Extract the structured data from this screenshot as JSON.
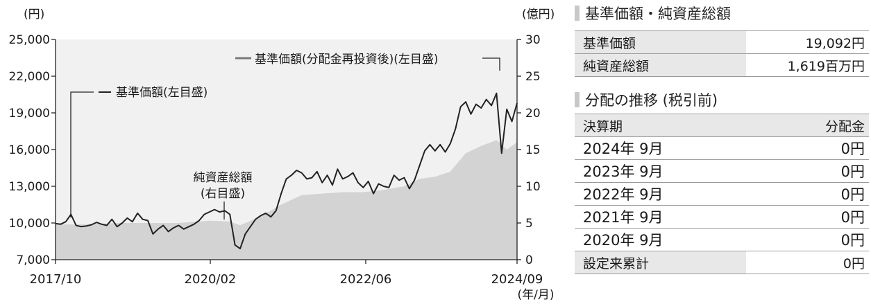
{
  "chart": {
    "left_unit": "(円)",
    "right_unit": "(億円)",
    "x_unit": "(年/月)",
    "ann_reinvest": "基準価額(分配金再投資後)(左目盛)",
    "ann_nav": "基準価額(左目盛)",
    "ann_assets_1": "純資産総額",
    "ann_assets_2": "(右目盛)"
  },
  "chart_data": {
    "type": "line",
    "x_ticks": [
      "2017/10",
      "2020/02",
      "2022/06",
      "2024/09"
    ],
    "left_ticks": [
      "7,000",
      "10,000",
      "13,000",
      "16,000",
      "19,000",
      "22,000",
      "25,000"
    ],
    "right_ticks": [
      "0",
      "5",
      "10",
      "15",
      "20",
      "25",
      "30"
    ],
    "ylim_left": [
      7000,
      25000
    ],
    "ylim_right": [
      0,
      30
    ],
    "grid": false,
    "series": [
      {
        "name": "基準価額(分配金再投資後)(左目盛)",
        "axis": "left",
        "points": [
          [
            "2017-10",
            9950
          ],
          [
            "2017-11",
            9900
          ],
          [
            "2017-12",
            10100
          ],
          [
            "2018-01",
            10700
          ],
          [
            "2018-02",
            9800
          ],
          [
            "2018-03",
            9700
          ],
          [
            "2018-04",
            9750
          ],
          [
            "2018-05",
            9850
          ],
          [
            "2018-06",
            10050
          ],
          [
            "2018-07",
            9900
          ],
          [
            "2018-08",
            9800
          ],
          [
            "2018-09",
            10300
          ],
          [
            "2018-10",
            9700
          ],
          [
            "2018-11",
            10000
          ],
          [
            "2018-12",
            10400
          ],
          [
            "2019-01",
            10100
          ],
          [
            "2019-02",
            10800
          ],
          [
            "2019-03",
            10300
          ],
          [
            "2019-04",
            10200
          ],
          [
            "2019-05",
            9100
          ],
          [
            "2019-06",
            9500
          ],
          [
            "2019-07",
            9800
          ],
          [
            "2019-08",
            9300
          ],
          [
            "2019-09",
            9600
          ],
          [
            "2019-10",
            9800
          ],
          [
            "2019-11",
            9500
          ],
          [
            "2019-12",
            9700
          ],
          [
            "2020-01",
            9900
          ],
          [
            "2020-02",
            10200
          ],
          [
            "2020-03",
            10700
          ],
          [
            "2020-04",
            10900
          ],
          [
            "2020-05",
            11100
          ],
          [
            "2020-06",
            10900
          ],
          [
            "2020-07",
            11000
          ],
          [
            "2020-08",
            10700
          ],
          [
            "2020-09",
            8200
          ],
          [
            "2020-10",
            7900
          ],
          [
            "2020-11",
            9100
          ],
          [
            "2020-12",
            9700
          ],
          [
            "2021-01",
            10300
          ],
          [
            "2021-02",
            10600
          ],
          [
            "2021-03",
            10800
          ],
          [
            "2021-04",
            10500
          ],
          [
            "2021-05",
            11000
          ],
          [
            "2021-06",
            12400
          ],
          [
            "2021-07",
            13600
          ],
          [
            "2021-08",
            13900
          ],
          [
            "2021-09",
            14300
          ],
          [
            "2021-10",
            14100
          ],
          [
            "2021-11",
            13600
          ],
          [
            "2021-12",
            13700
          ],
          [
            "2022-01",
            14200
          ],
          [
            "2022-02",
            13300
          ],
          [
            "2022-03",
            13900
          ],
          [
            "2022-04",
            13100
          ],
          [
            "2022-05",
            14400
          ],
          [
            "2022-06",
            13600
          ],
          [
            "2022-07",
            13800
          ],
          [
            "2022-08",
            14100
          ],
          [
            "2022-09",
            13300
          ],
          [
            "2022-10",
            12900
          ],
          [
            "2022-11",
            13400
          ],
          [
            "2022-12",
            12400
          ],
          [
            "2023-01",
            13200
          ],
          [
            "2023-02",
            13000
          ],
          [
            "2023-03",
            12900
          ],
          [
            "2023-04",
            13900
          ],
          [
            "2023-05",
            13500
          ],
          [
            "2023-06",
            13700
          ],
          [
            "2023-07",
            12800
          ],
          [
            "2023-08",
            13500
          ],
          [
            "2023-09",
            14700
          ],
          [
            "2023-10",
            15900
          ],
          [
            "2023-11",
            16400
          ],
          [
            "2023-12",
            15900
          ],
          [
            "2024-01",
            16400
          ],
          [
            "2024-02",
            15800
          ],
          [
            "2024-03",
            16500
          ],
          [
            "2024-04",
            17700
          ],
          [
            "2024-05",
            19500
          ],
          [
            "2024-06",
            19900
          ],
          [
            "2024-07",
            18900
          ],
          [
            "2024-08",
            19700
          ],
          [
            "2024-09",
            19400
          ],
          [
            "2024-10",
            20100
          ],
          [
            "2024-11",
            19600
          ],
          [
            "2024-12",
            20600
          ],
          [
            "2025-01",
            15700
          ],
          [
            "2025-02",
            19300
          ],
          [
            "2025-03",
            18300
          ],
          [
            "2025-04",
            19800
          ]
        ]
      },
      {
        "name": "純資産総額(右目盛)",
        "axis": "right",
        "points": [
          [
            "2017-10",
            4.8
          ],
          [
            "2018-04",
            4.8
          ],
          [
            "2018-10",
            5.0
          ],
          [
            "2019-04",
            5.0
          ],
          [
            "2019-10",
            5.0
          ],
          [
            "2020-04",
            5.3
          ],
          [
            "2020-08",
            5.2
          ],
          [
            "2020-10",
            4.7
          ],
          [
            "2021-02",
            5.9
          ],
          [
            "2021-06",
            7.5
          ],
          [
            "2021-10",
            8.8
          ],
          [
            "2022-02",
            9.0
          ],
          [
            "2022-06",
            9.2
          ],
          [
            "2022-10",
            9.2
          ],
          [
            "2023-02",
            9.5
          ],
          [
            "2023-06",
            10.0
          ],
          [
            "2023-09",
            11.0
          ],
          [
            "2023-12",
            11.3
          ],
          [
            "2024-03",
            12.0
          ],
          [
            "2024-06",
            14.5
          ],
          [
            "2024-09",
            15.5
          ],
          [
            "2024-12",
            16.3
          ],
          [
            "2025-02",
            15.0
          ],
          [
            "2025-04",
            16.0
          ]
        ]
      }
    ]
  },
  "nav_section": {
    "title": "基準価額・純資産総額",
    "rows": [
      {
        "label": "基準価額",
        "value": "19,092円"
      },
      {
        "label": "純資産総額",
        "value": "1,619百万円"
      }
    ]
  },
  "dist_section": {
    "title": "分配の推移 (税引前)",
    "header_left": "決算期",
    "header_right": "分配金",
    "rows": [
      {
        "period": "2024年 9月",
        "amount": "0円"
      },
      {
        "period": "2023年 9月",
        "amount": "0円"
      },
      {
        "period": "2022年 9月",
        "amount": "0円"
      },
      {
        "period": "2021年 9月",
        "amount": "0円"
      },
      {
        "period": "2020年 9月",
        "amount": "0円"
      }
    ],
    "total_label": "設定来累計",
    "total_value": "0円"
  },
  "colors": {
    "plot_bg": "#f1f1f1",
    "area_fill": "#d3d3d3",
    "line": "#222222",
    "table_label_bg": "#e8e8e8"
  }
}
